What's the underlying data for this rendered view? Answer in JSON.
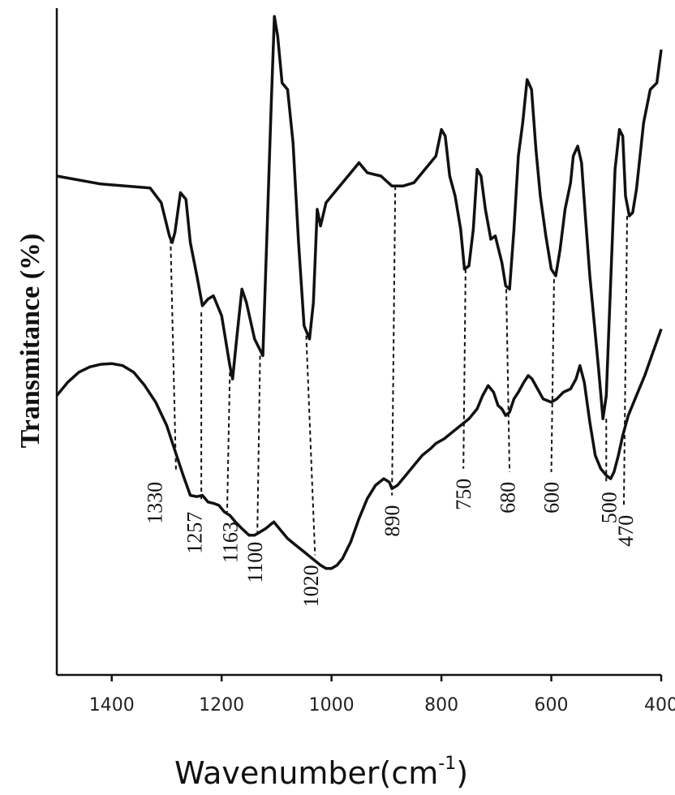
{
  "chart_data": {
    "type": "line",
    "xlabel": "Wavenumber(cm",
    "xlabel_sup": "-1",
    "xlabel_close": ")",
    "ylabel": "Transmitance (%)",
    "xlim": [
      1500,
      400
    ],
    "ylim": [
      0,
      100
    ],
    "x_reversed": true,
    "x_ticks": [
      1400,
      1200,
      1000,
      800,
      600,
      400
    ],
    "x_tick_labels": [
      "1400",
      "1200",
      "1000",
      "800",
      "600",
      "400"
    ],
    "grid": false,
    "series": [
      {
        "points": [
          [
            1500,
            75.0
          ],
          [
            1420,
            73.8
          ],
          [
            1330,
            73.2
          ],
          [
            1310,
            71.0
          ],
          [
            1295,
            66.0
          ],
          [
            1290,
            65.0
          ],
          [
            1285,
            66.5
          ],
          [
            1275,
            72.5
          ],
          [
            1265,
            71.5
          ],
          [
            1257,
            65.0
          ],
          [
            1245,
            60.0
          ],
          [
            1235,
            55.5
          ],
          [
            1225,
            56.5
          ],
          [
            1215,
            57.0
          ],
          [
            1200,
            54.0
          ],
          [
            1185,
            46.5
          ],
          [
            1180,
            44.5
          ],
          [
            1172,
            51.0
          ],
          [
            1163,
            58.0
          ],
          [
            1155,
            56.0
          ],
          [
            1140,
            50.5
          ],
          [
            1125,
            48.0
          ],
          [
            1118,
            65.0
          ],
          [
            1110,
            85.0
          ],
          [
            1104,
            99.0
          ],
          [
            1098,
            96.0
          ],
          [
            1090,
            89.0
          ],
          [
            1080,
            88.0
          ],
          [
            1070,
            80.0
          ],
          [
            1060,
            65.0
          ],
          [
            1050,
            52.5
          ],
          [
            1040,
            50.5
          ],
          [
            1033,
            56.0
          ],
          [
            1026,
            70.0
          ],
          [
            1020,
            67.5
          ],
          [
            1010,
            71.0
          ],
          [
            990,
            73.0
          ],
          [
            970,
            75.0
          ],
          [
            950,
            77.0
          ],
          [
            935,
            75.5
          ],
          [
            910,
            75.0
          ],
          [
            890,
            73.5
          ],
          [
            870,
            73.5
          ],
          [
            850,
            74.0
          ],
          [
            830,
            76.0
          ],
          [
            810,
            78.0
          ],
          [
            800,
            82.0
          ],
          [
            793,
            81.0
          ],
          [
            785,
            75.0
          ],
          [
            775,
            72.0
          ],
          [
            765,
            67.0
          ],
          [
            758,
            61.0
          ],
          [
            750,
            61.5
          ],
          [
            742,
            67.0
          ],
          [
            735,
            76.0
          ],
          [
            728,
            75.0
          ],
          [
            720,
            70.0
          ],
          [
            710,
            65.5
          ],
          [
            702,
            66.0
          ],
          [
            696,
            64.0
          ],
          [
            690,
            62.0
          ],
          [
            683,
            58.5
          ],
          [
            676,
            58.0
          ],
          [
            668,
            67.0
          ],
          [
            660,
            78.0
          ],
          [
            652,
            83.0
          ],
          [
            644,
            89.5
          ],
          [
            636,
            88.0
          ],
          [
            628,
            79.0
          ],
          [
            620,
            72.0
          ],
          [
            610,
            66.0
          ],
          [
            600,
            61.0
          ],
          [
            592,
            60.0
          ],
          [
            584,
            64.0
          ],
          [
            575,
            70.0
          ],
          [
            565,
            74.0
          ],
          [
            560,
            78.0
          ],
          [
            552,
            79.5
          ],
          [
            545,
            77.0
          ],
          [
            538,
            69.0
          ],
          [
            530,
            60.0
          ],
          [
            522,
            53.0
          ],
          [
            514,
            46.0
          ],
          [
            506,
            38.5
          ],
          [
            500,
            42.0
          ],
          [
            492,
            59.0
          ],
          [
            484,
            76.0
          ],
          [
            476,
            82.0
          ],
          [
            470,
            81.0
          ],
          [
            465,
            72.0
          ],
          [
            458,
            69.0
          ],
          [
            452,
            69.5
          ],
          [
            445,
            73.0
          ],
          [
            432,
            83.0
          ],
          [
            420,
            88.0
          ],
          [
            408,
            89.0
          ],
          [
            400,
            94.0
          ]
        ]
      },
      {
        "points": [
          [
            1500,
            42.0
          ],
          [
            1480,
            44.0
          ],
          [
            1460,
            45.5
          ],
          [
            1440,
            46.3
          ],
          [
            1420,
            46.7
          ],
          [
            1400,
            46.8
          ],
          [
            1380,
            46.5
          ],
          [
            1360,
            45.5
          ],
          [
            1340,
            43.5
          ],
          [
            1320,
            41.0
          ],
          [
            1300,
            37.5
          ],
          [
            1290,
            35.0
          ],
          [
            1280,
            32.5
          ],
          [
            1270,
            30.0
          ],
          [
            1257,
            27.0
          ],
          [
            1245,
            26.8
          ],
          [
            1235,
            27.0
          ],
          [
            1225,
            26.0
          ],
          [
            1215,
            25.8
          ],
          [
            1205,
            25.5
          ],
          [
            1195,
            24.5
          ],
          [
            1185,
            24.0
          ],
          [
            1175,
            23.0
          ],
          [
            1163,
            22.0
          ],
          [
            1150,
            21.0
          ],
          [
            1140,
            21.0
          ],
          [
            1130,
            21.5
          ],
          [
            1120,
            22.0
          ],
          [
            1105,
            23.0
          ],
          [
            1100,
            22.5
          ],
          [
            1090,
            21.5
          ],
          [
            1080,
            20.5
          ],
          [
            1065,
            19.5
          ],
          [
            1050,
            18.5
          ],
          [
            1035,
            17.5
          ],
          [
            1020,
            16.5
          ],
          [
            1010,
            16.0
          ],
          [
            1000,
            16.0
          ],
          [
            990,
            16.5
          ],
          [
            980,
            17.5
          ],
          [
            965,
            20.0
          ],
          [
            950,
            23.5
          ],
          [
            935,
            26.5
          ],
          [
            920,
            28.5
          ],
          [
            905,
            29.5
          ],
          [
            895,
            29.0
          ],
          [
            890,
            28.0
          ],
          [
            880,
            28.5
          ],
          [
            865,
            30.0
          ],
          [
            850,
            31.5
          ],
          [
            835,
            33.0
          ],
          [
            820,
            34.0
          ],
          [
            810,
            34.8
          ],
          [
            795,
            35.5
          ],
          [
            780,
            36.5
          ],
          [
            765,
            37.5
          ],
          [
            750,
            38.5
          ],
          [
            735,
            40.0
          ],
          [
            725,
            42.0
          ],
          [
            715,
            43.5
          ],
          [
            705,
            42.5
          ],
          [
            697,
            40.5
          ],
          [
            690,
            40.0
          ],
          [
            683,
            39.0
          ],
          [
            676,
            39.5
          ],
          [
            668,
            41.5
          ],
          [
            660,
            42.5
          ],
          [
            650,
            44.0
          ],
          [
            642,
            45.0
          ],
          [
            635,
            44.5
          ],
          [
            625,
            43.0
          ],
          [
            615,
            41.5
          ],
          [
            600,
            41.0
          ],
          [
            590,
            41.5
          ],
          [
            578,
            42.5
          ],
          [
            565,
            43.0
          ],
          [
            555,
            44.5
          ],
          [
            548,
            46.5
          ],
          [
            540,
            44.0
          ],
          [
            530,
            38.0
          ],
          [
            520,
            33.0
          ],
          [
            510,
            31.0
          ],
          [
            500,
            30.0
          ],
          [
            492,
            29.5
          ],
          [
            486,
            30.5
          ],
          [
            478,
            33.0
          ],
          [
            470,
            36.0
          ],
          [
            460,
            39.0
          ],
          [
            445,
            42.0
          ],
          [
            430,
            45.0
          ],
          [
            415,
            48.5
          ],
          [
            400,
            52.0
          ]
        ]
      }
    ],
    "annotations": [
      {
        "label": "1330",
        "x_top": 1293,
        "y_top": 65.5,
        "x_bot": 1283,
        "y_bot": 30.5,
        "label_x": 1322
      },
      {
        "label": "1257",
        "x_top": 1237,
        "y_top": 54.5,
        "x_bot": 1237,
        "y_bot": 26.0,
        "label_x": 1250
      },
      {
        "label": "1163",
        "x_top": 1185,
        "y_top": 45.5,
        "x_bot": 1190,
        "y_bot": 24.5,
        "label_x": 1185
      },
      {
        "label": "1100",
        "x_top": 1130,
        "y_top": 48.0,
        "x_bot": 1135,
        "y_bot": 21.5,
        "label_x": 1140
      },
      {
        "label": "1020",
        "x_top": 1046,
        "y_top": 51.0,
        "x_bot": 1030,
        "y_bot": 18.0,
        "label_x": 1038
      },
      {
        "label": "890",
        "x_top": 884,
        "y_top": 73.5,
        "x_bot": 890,
        "y_bot": 27.0,
        "label_x": 890
      },
      {
        "label": "750",
        "x_top": 756,
        "y_top": 61.0,
        "x_bot": 760,
        "y_bot": 31.0,
        "label_x": 760
      },
      {
        "label": "680",
        "x_top": 682,
        "y_top": 58.0,
        "x_bot": 676,
        "y_bot": 30.5,
        "label_x": 680
      },
      {
        "label": "600",
        "x_top": 595,
        "y_top": 59.5,
        "x_bot": 600,
        "y_bot": 30.5,
        "label_x": 600
      },
      {
        "label": "500",
        "x_top": 500,
        "y_top": 38.5,
        "x_bot": 500,
        "y_bot": 29.0,
        "label_x": 495
      },
      {
        "label": "470",
        "x_top": 462,
        "y_top": 69.0,
        "x_bot": 468,
        "y_bot": 25.5,
        "label_x": 465
      }
    ]
  }
}
